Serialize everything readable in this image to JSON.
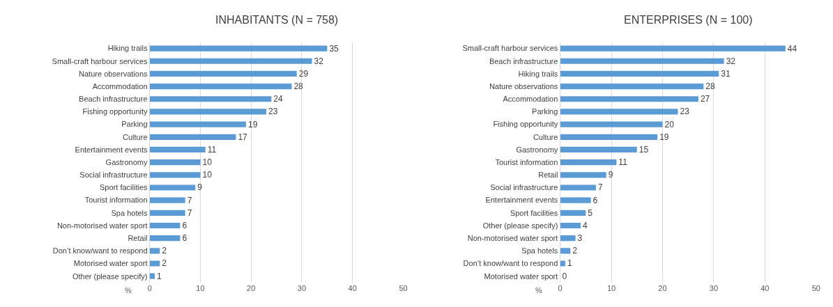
{
  "chart_data": [
    {
      "type": "bar",
      "orientation": "horizontal",
      "title": "INHABITANTS (N = 758)",
      "xlabel": "%",
      "categories": [
        "Hiking trails",
        "Small-craft harbour services",
        "Nature observations",
        "Accommodation",
        "Beach infrastructure",
        "Fishing opportunity",
        "Parking",
        "Culture",
        "Entertainment events",
        "Gastronomy",
        "Social infrastructure",
        "Sport facilities",
        "Tourist information",
        "Spa hotels",
        "Non-motorised water sport",
        "Retail",
        "Don’t know/want to respond",
        "Motorised water sport",
        "Other (please specify)"
      ],
      "values": [
        35,
        32,
        29,
        28,
        24,
        23,
        19,
        17,
        11,
        10,
        10,
        9,
        7,
        7,
        6,
        6,
        2,
        2,
        1
      ],
      "color": "#5b9bd5",
      "xlim": [
        0,
        50
      ],
      "xticks": [
        0,
        10,
        20,
        30,
        40,
        50
      ],
      "grid": "x",
      "data_labels": true
    },
    {
      "type": "bar",
      "orientation": "horizontal",
      "title": "ENTERPRISES (N = 100)",
      "xlabel": "%",
      "categories": [
        "Small-craft harbour services",
        "Beach infrastructure",
        "Hiking trails",
        "Nature observations",
        "Accommodation",
        "Parking",
        "Fishing opportunity",
        "Culture",
        "Gastronomy",
        "Tourist information",
        "Retail",
        "Social infrastructure",
        "Entertainment events",
        "Sport facilities",
        "Other (please specify)",
        "Non-motorised water sport",
        "Spa hotels",
        "Don’t know/want to respond",
        "Motorised water sport"
      ],
      "values": [
        44,
        32,
        31,
        28,
        27,
        23,
        20,
        19,
        15,
        11,
        9,
        7,
        6,
        5,
        4,
        3,
        2,
        1,
        0
      ],
      "color": "#5b9bd5",
      "xlim": [
        0,
        50
      ],
      "xticks": [
        0,
        10,
        20,
        30,
        40,
        50
      ],
      "grid": "x",
      "data_labels": true
    }
  ]
}
